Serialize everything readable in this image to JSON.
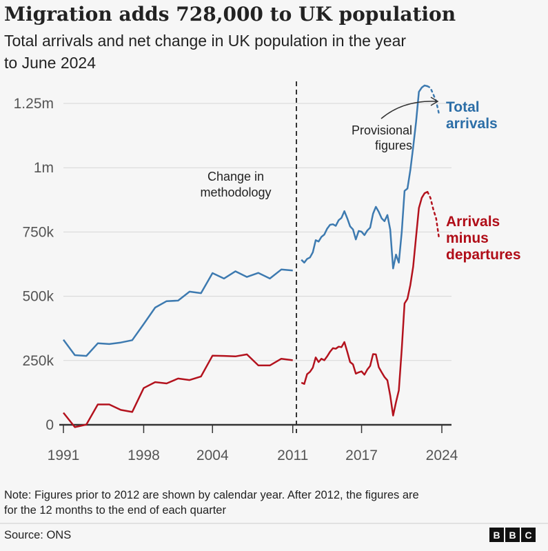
{
  "header": {
    "title": "Migration adds 728,000 to UK population",
    "subtitle_line1": "Total arrivals and net change in UK population in the year",
    "subtitle_line2": "to June 2024"
  },
  "chart_data": {
    "type": "line",
    "title": "Migration adds 728,000 to UK population",
    "subtitle": "Total arrivals and net change in UK population in the year to June 2024",
    "xlabel": "",
    "ylabel": "",
    "xlim": [
      1991,
      2024
    ],
    "ylim": [
      0,
      1300000
    ],
    "grid": true,
    "x_ticks": [
      "1991",
      "1998",
      "2004",
      "2011",
      "2017",
      "2024"
    ],
    "x_tick_values": [
      1991,
      1998,
      2004,
      2011,
      2017,
      2024
    ],
    "y_ticks": [
      "0",
      "250k",
      "500k",
      "750k",
      "1m",
      "1.25m"
    ],
    "y_tick_values": [
      0,
      250000,
      500000,
      750000,
      1000000,
      1250000
    ],
    "colors": {
      "total": "#3d7ab0",
      "net": "#b3121d",
      "total_label": "#2c6ea7",
      "net_label": "#b00d18"
    },
    "series": [
      {
        "name": "Total arrivals",
        "calendar_year": {
          "x": [
            1991,
            1992,
            1993,
            1994,
            1995,
            1996,
            1997,
            1998,
            1999,
            2000,
            2001,
            2002,
            2003,
            2004,
            2005,
            2006,
            2007,
            2008,
            2009,
            2010,
            2011
          ],
          "y": [
            331000,
            271000,
            268000,
            317000,
            314000,
            320000,
            329000,
            392000,
            456000,
            481000,
            483000,
            518000,
            512000,
            590000,
            569000,
            597000,
            575000,
            591000,
            569000,
            604000,
            600000
          ]
        },
        "quarterly": {
          "x": [
            2011.75,
            2012,
            2012.25,
            2012.5,
            2012.75,
            2013,
            2013.25,
            2013.5,
            2013.75,
            2014,
            2014.25,
            2014.5,
            2014.75,
            2015,
            2015.25,
            2015.5,
            2015.75,
            2016,
            2016.25,
            2016.5,
            2016.75,
            2017,
            2017.25,
            2017.5,
            2017.75,
            2018,
            2018.25,
            2018.5,
            2018.75,
            2019,
            2019.25,
            2019.5,
            2019.75,
            2020,
            2020.25,
            2020.5,
            2020.75,
            2021,
            2021.25,
            2021.5,
            2021.75,
            2022,
            2022.25,
            2022.5,
            2022.75
          ],
          "y": [
            642000,
            631000,
            645000,
            651000,
            671000,
            718000,
            713000,
            731000,
            740000,
            763000,
            778000,
            780000,
            774000,
            796000,
            805000,
            831000,
            803000,
            772000,
            760000,
            721000,
            754000,
            751000,
            738000,
            756000,
            767000,
            821000,
            848000,
            828000,
            803000,
            792000,
            816000,
            760000,
            608000,
            662000,
            631000,
            749000,
            910000,
            919000,
            991000,
            1080000,
            1178000,
            1295000,
            1312000,
            1320000,
            1317000
          ]
        },
        "provisional": {
          "x": [
            2022.75,
            2023,
            2023.25,
            2023.5,
            2023.75
          ],
          "y": [
            1317000,
            1311000,
            1286000,
            1259000,
            1210000
          ]
        }
      },
      {
        "name": "Arrivals minus departures",
        "calendar_year": {
          "x": [
            1991,
            1992,
            1993,
            1994,
            1995,
            1996,
            1997,
            1998,
            1999,
            2000,
            2001,
            2002,
            2003,
            2004,
            2005,
            2006,
            2007,
            2008,
            2009,
            2010,
            2011
          ],
          "y": [
            47000,
            -9000,
            1000,
            79000,
            79000,
            58000,
            50000,
            143000,
            166000,
            161000,
            180000,
            174000,
            188000,
            269000,
            268000,
            266000,
            274000,
            231000,
            231000,
            257000,
            251000
          ]
        },
        "quarterly": {
          "x": [
            2011.75,
            2012,
            2012.25,
            2012.5,
            2012.75,
            2013,
            2013.25,
            2013.5,
            2013.75,
            2014,
            2014.25,
            2014.5,
            2014.75,
            2015,
            2015.25,
            2015.5,
            2015.75,
            2016,
            2016.25,
            2016.5,
            2016.75,
            2017,
            2017.25,
            2017.5,
            2017.75,
            2018,
            2018.25,
            2018.5,
            2018.75,
            2019,
            2019.25,
            2019.5,
            2019.75,
            2020,
            2020.25,
            2020.5,
            2020.75,
            2021,
            2021.25,
            2021.5,
            2021.75,
            2022,
            2022.25,
            2022.5,
            2022.75
          ],
          "y": [
            164000,
            159000,
            197000,
            206000,
            222000,
            262000,
            244000,
            257000,
            251000,
            266000,
            284000,
            298000,
            296000,
            304000,
            302000,
            322000,
            284000,
            244000,
            235000,
            199000,
            204000,
            208000,
            195000,
            215000,
            229000,
            275000,
            274000,
            224000,
            204000,
            186000,
            173000,
            114000,
            36000,
            88000,
            134000,
            293000,
            472000,
            490000,
            544000,
            615000,
            731000,
            843000,
            883000,
            901000,
            906000
          ]
        },
        "provisional": {
          "x": [
            2022.75,
            2023,
            2023.25,
            2023.5,
            2023.75
          ],
          "y": [
            906000,
            883000,
            839000,
            803000,
            728000
          ]
        }
      }
    ],
    "annotations": {
      "methodology_line1": "Change in",
      "methodology_line2": "methodology",
      "provisional_line1": "Provisional",
      "provisional_line2": "figures",
      "total_line1": "Total",
      "total_line2": "arrivals",
      "net_line1": "Arrivals",
      "net_line2": "minus",
      "net_line3": "departures"
    }
  },
  "footer": {
    "note_line1": "Note: Figures prior to 2012 are shown by calendar year. After 2012, the figures are",
    "note_line2": "for the 12 months to the end of each quarter",
    "source": "Source: ONS",
    "logo": "BBC"
  }
}
